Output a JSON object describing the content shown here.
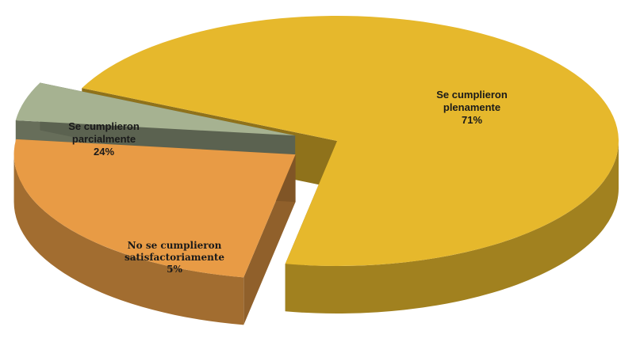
{
  "chart_data": {
    "type": "pie",
    "title": "",
    "slices": [
      {
        "name": "Se cumplieron plenamente",
        "label_lines": [
          "Se cumplieron",
          "plenamente"
        ],
        "value": 71,
        "value_label": "71%",
        "color": "#e6b82c"
      },
      {
        "name": "Se cumplieron parcialmente",
        "label_lines": [
          "Se cumplieron",
          "parcialmente"
        ],
        "value": 24,
        "value_label": "24%",
        "color": "#e89b45"
      },
      {
        "name": "No se cumplieron satisfactoriamente",
        "label_lines": [
          "No se cumplieron",
          "satisfactoriamente"
        ],
        "value": 5,
        "value_label": "5%",
        "color": "#a6b291"
      }
    ],
    "style": "3d-exploded"
  }
}
